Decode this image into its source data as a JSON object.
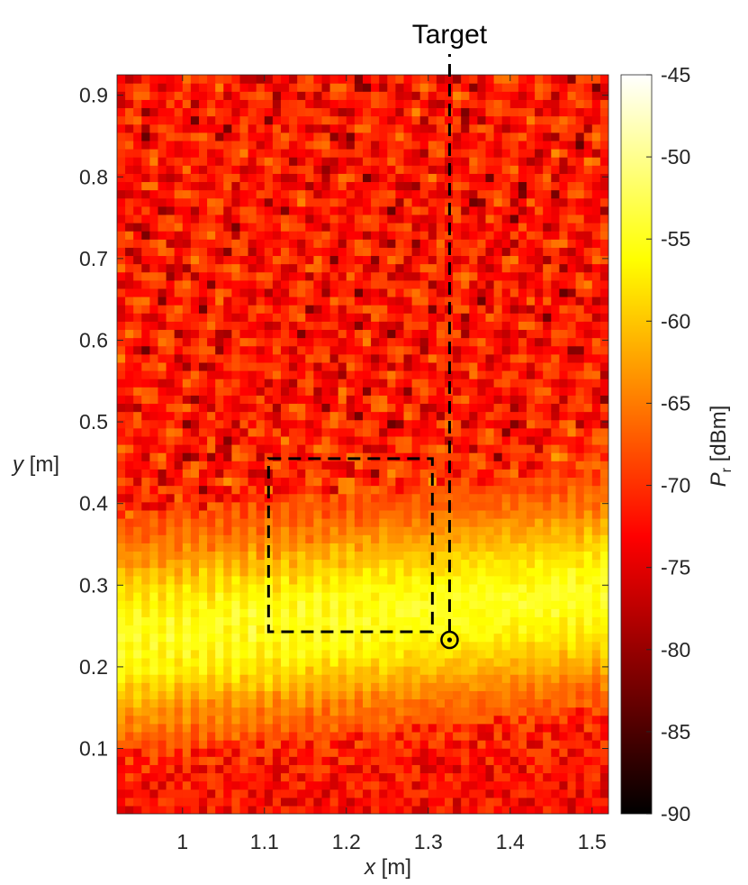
{
  "chart_data": {
    "type": "heatmap",
    "title": "",
    "xlabel": {
      "var": "x",
      "unit": " [m]"
    },
    "ylabel": {
      "var": "y",
      "unit": " [m]"
    },
    "colorbar_label": {
      "var": "P",
      "sub": "r",
      "unit": " [dBm]"
    },
    "xlim": [
      0.92,
      1.52
    ],
    "ylim": [
      0.02,
      0.925
    ],
    "clim": [
      -90,
      -45
    ],
    "x_ticks": [
      {
        "value": 1.0,
        "label": "1"
      },
      {
        "value": 1.1,
        "label": "1.1"
      },
      {
        "value": 1.2,
        "label": "1.2"
      },
      {
        "value": 1.3,
        "label": "1.3"
      },
      {
        "value": 1.4,
        "label": "1.4"
      },
      {
        "value": 1.5,
        "label": "1.5"
      }
    ],
    "y_ticks": [
      {
        "value": 0.1,
        "label": "0.1"
      },
      {
        "value": 0.2,
        "label": "0.2"
      },
      {
        "value": 0.3,
        "label": "0.3"
      },
      {
        "value": 0.4,
        "label": "0.4"
      },
      {
        "value": 0.5,
        "label": "0.5"
      },
      {
        "value": 0.6,
        "label": "0.6"
      },
      {
        "value": 0.7,
        "label": "0.7"
      },
      {
        "value": 0.8,
        "label": "0.8"
      },
      {
        "value": 0.9,
        "label": "0.9"
      }
    ],
    "colorbar_ticks": [
      {
        "value": -45,
        "label": "-45"
      },
      {
        "value": -50,
        "label": "-50"
      },
      {
        "value": -55,
        "label": "-55"
      },
      {
        "value": -60,
        "label": "-60"
      },
      {
        "value": -65,
        "label": "-65"
      },
      {
        "value": -70,
        "label": "-70"
      },
      {
        "value": -75,
        "label": "-75"
      },
      {
        "value": -80,
        "label": "-80"
      },
      {
        "value": -85,
        "label": "-85"
      },
      {
        "value": -90,
        "label": "-90"
      }
    ],
    "colormap": "hot",
    "grid": false,
    "grid_resolution": {
      "x": 60,
      "y": 90
    },
    "field_model": {
      "beam_center_y_at_x": [
        [
          0.92,
          0.235
        ],
        [
          1.52,
          0.29
        ]
      ],
      "beam_half_width_m": 0.11,
      "beam_peak_dbm": -55,
      "background_dbm": -71,
      "edge_dbm": -75
    },
    "annotations": {
      "target_label": "Target",
      "target_point": {
        "x": 1.326,
        "y": 0.233
      },
      "dashed_line": {
        "x": 1.326,
        "y_from": 0.243,
        "y_to": 0.925
      },
      "dashed_rect": {
        "x0": 1.105,
        "x1": 1.305,
        "y0": 0.243,
        "y1": 0.455
      }
    }
  }
}
